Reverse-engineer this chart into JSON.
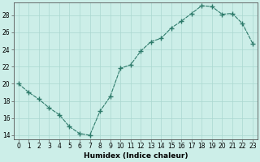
{
  "x": [
    0,
    1,
    2,
    3,
    4,
    5,
    6,
    7,
    8,
    9,
    10,
    11,
    12,
    13,
    14,
    15,
    16,
    17,
    18,
    19,
    20,
    21,
    22,
    23
  ],
  "y": [
    20.0,
    19.0,
    18.2,
    17.2,
    16.4,
    15.0,
    14.2,
    14.0,
    16.8,
    18.5,
    21.8,
    22.2,
    23.8,
    24.9,
    25.3,
    26.5,
    27.3,
    28.2,
    29.1,
    29.0,
    28.1,
    28.2,
    27.0,
    24.7
  ],
  "line_color": "#2d7a6a",
  "marker": "+",
  "marker_size": 4,
  "bg_color": "#cceee8",
  "grid_color": "#aad8d0",
  "xlabel": "Humidex (Indice chaleur)",
  "xlim": [
    -0.5,
    23.5
  ],
  "ylim": [
    13.5,
    29.5
  ],
  "xticks": [
    0,
    1,
    2,
    3,
    4,
    5,
    6,
    7,
    8,
    9,
    10,
    11,
    12,
    13,
    14,
    15,
    16,
    17,
    18,
    19,
    20,
    21,
    22,
    23
  ],
  "yticks": [
    14,
    16,
    18,
    20,
    22,
    24,
    26,
    28
  ],
  "tick_fontsize": 5.5,
  "label_fontsize": 6.5
}
